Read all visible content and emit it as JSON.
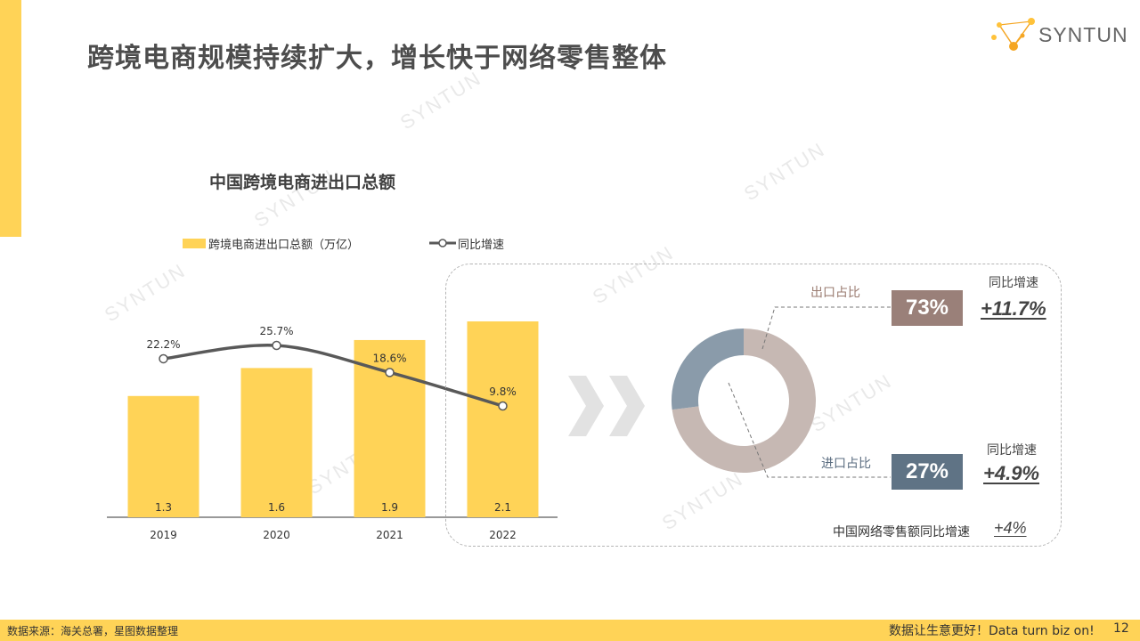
{
  "title": "跨境电商规模持续扩大，增长快于网络零售整体",
  "brand": {
    "name": "SYNTUN",
    "accent_color": "#FFD357",
    "watermark": "SYNTUN"
  },
  "chart_data": [
    {
      "type": "bar",
      "title": "中国跨境电商进出口总额",
      "categories": [
        "2019",
        "2020",
        "2021",
        "2022"
      ],
      "series": [
        {
          "name": "跨境电商进出口总额（万亿）",
          "type": "bar",
          "values": [
            1.3,
            1.6,
            1.9,
            2.1
          ],
          "labels": [
            "1.3",
            "1.6",
            "1.9",
            "2.1"
          ],
          "color": "#FFD357"
        },
        {
          "name": "同比增速",
          "type": "line",
          "values": [
            22.2,
            25.7,
            18.6,
            9.8
          ],
          "labels": [
            "22.2%",
            "25.7%",
            "18.6%",
            "9.8%"
          ],
          "color": "#595959"
        }
      ],
      "legend": "top",
      "grid": false
    },
    {
      "type": "pie",
      "slices": [
        {
          "name": "出口占比",
          "value": 73,
          "label": "73%",
          "color": "#C6B8B3"
        },
        {
          "name": "进口占比",
          "value": 27,
          "label": "27%",
          "color": "#8A9BAA"
        }
      ]
    }
  ],
  "donut_panel": {
    "export_label": "出口占比",
    "export_share": "73%",
    "export_yoy_label": "同比增速",
    "export_yoy": "+11.7%",
    "import_label": "进口占比",
    "import_share": "27%",
    "import_yoy_label": "同比增速",
    "import_yoy": "+4.9%",
    "online_retail_label": "中国网络零售额同比增速",
    "online_retail_yoy": "+4%"
  },
  "footer": {
    "source": "数据来源：海关总署，星图数据整理",
    "slogan": "数据让生意更好！Data turn biz on!",
    "page": "12"
  }
}
